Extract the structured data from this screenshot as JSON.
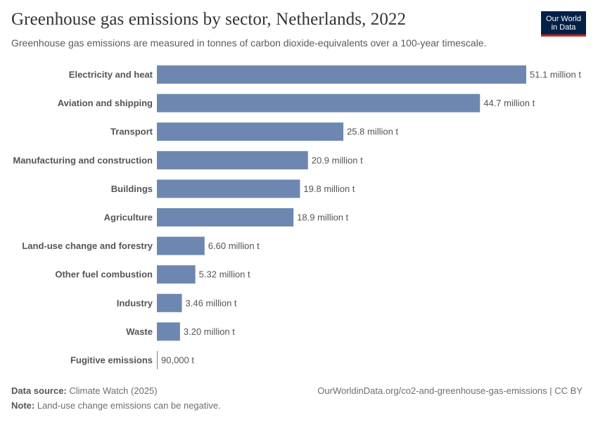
{
  "header": {
    "title": "Greenhouse gas emissions by sector, Netherlands, 2022",
    "subtitle": "Greenhouse gas emissions are measured in tonnes of carbon dioxide-equivalents over a 100-year timescale."
  },
  "logo": {
    "line1": "Our World",
    "line2": "in Data"
  },
  "colors": {
    "bar": "#6d87b1",
    "text": "#333333",
    "muted": "#5b5b5b",
    "logo_bg": "#002147",
    "logo_accent": "#ce261e"
  },
  "chart_data": {
    "type": "bar",
    "orientation": "horizontal",
    "categories": [
      "Electricity and heat",
      "Aviation and shipping",
      "Transport",
      "Manufacturing and construction",
      "Buildings",
      "Agriculture",
      "Land-use change and forestry",
      "Other fuel combustion",
      "Industry",
      "Waste",
      "Fugitive emissions"
    ],
    "values": [
      51100000,
      44700000,
      25800000,
      20900000,
      19800000,
      18900000,
      6600000,
      5320000,
      3460000,
      3200000,
      90000
    ],
    "value_labels": [
      "51.1 million t",
      "44.7 million t",
      "25.8 million t",
      "20.9 million t",
      "19.8 million t",
      "18.9 million t",
      "6.60 million t",
      "5.32 million t",
      "3.46 million t",
      "3.20 million t",
      "90,000 t"
    ],
    "xlim": [
      0,
      51100000
    ],
    "grid": false,
    "legend": "none"
  },
  "footer": {
    "source_label": "Data source:",
    "source_value": "Climate Watch (2025)",
    "url": "OurWorldinData.org/co2-and-greenhouse-gas-emissions",
    "license": "| CC BY",
    "note_label": "Note:",
    "note_value": "Land-use change emissions can be negative."
  }
}
